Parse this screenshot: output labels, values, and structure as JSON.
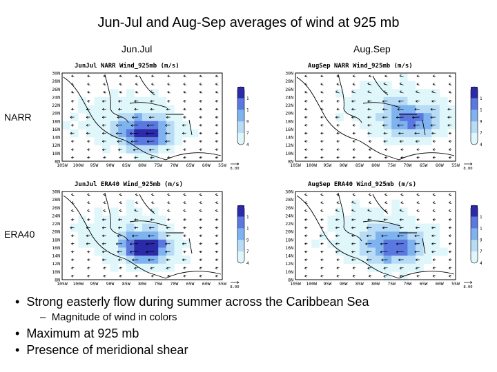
{
  "slide_title": "Jun-Jul and Aug-Sep averages of wind at 925 mb",
  "column_labels": [
    "Jun.Jul",
    "Aug.Sep"
  ],
  "row_labels": [
    "NARR",
    "ERA40"
  ],
  "panels": [
    {
      "title": "JunJul NARR Wind_925mb (m/s)"
    },
    {
      "title": "AugSep NARR Wind_925mb (m/s)"
    },
    {
      "title": "JunJul ERA40 Wind_925mb (m/s)"
    },
    {
      "title": "AugSep ERA40 Wind_925mb (m/s)"
    }
  ],
  "lat_labels": [
    "30N",
    "28N",
    "26N",
    "24N",
    "22N",
    "20N",
    "18N",
    "16N",
    "14N",
    "12N",
    "10N",
    "8N"
  ],
  "lon_labels": [
    "105W",
    "100W",
    "95W",
    "90W",
    "85W",
    "80W",
    "75W",
    "70W",
    "65W",
    "60W",
    "55W"
  ],
  "colorbar_labels": [
    "14.5",
    "12",
    "9.5",
    "7",
    "4.5"
  ],
  "vector_ref": "8.00",
  "colors": {
    "c1": "#dff7fb",
    "c2": "#b8dcf6",
    "c3": "#7fb3ef",
    "c4": "#5a78df",
    "c5": "#2b2aa8"
  },
  "bullets": [
    {
      "text": "Strong easterly flow during summer across the Caribbean Sea",
      "level": 1
    },
    {
      "text": "Magnitude of wind in colors",
      "level": 2
    },
    {
      "text": "Maximum at 925 mb",
      "level": 1
    },
    {
      "text": "Presence of meridional shear",
      "level": 1
    }
  ]
}
